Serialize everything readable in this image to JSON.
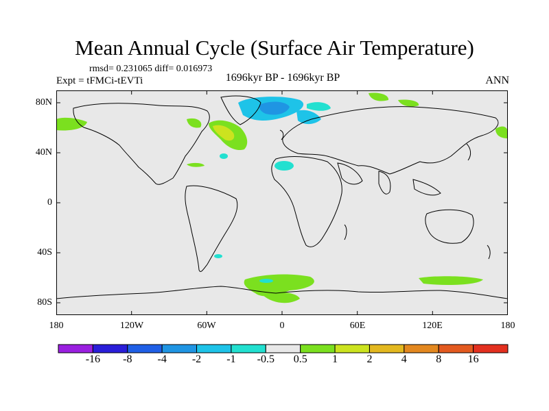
{
  "title": "Mean Annual Cycle (Surface Air Temperature)",
  "stats": "rmsd= 0.231065 diff= 0.016973",
  "experiment": "Expt = tFMCi-tEVTi",
  "period": "1696kyr BP - 1696kyr BP",
  "season": "ANN",
  "y_ticks": [
    "80N",
    "40N",
    "0",
    "40S",
    "80S"
  ],
  "x_ticks": [
    "180",
    "120W",
    "60W",
    "0",
    "60E",
    "120E",
    "180"
  ],
  "colorbar": {
    "labels": [
      "-16",
      "-8",
      "-4",
      "-2",
      "-1",
      "-0.5",
      "0.5",
      "1",
      "2",
      "4",
      "8",
      "16"
    ],
    "colors": [
      "#9a1fe0",
      "#2a1ed9",
      "#1f5fe6",
      "#1f95e3",
      "#1ec3e8",
      "#22e0d0",
      "#e8e8e8",
      "#7be01f",
      "#cce31f",
      "#e3b81f",
      "#e3881f",
      "#e35a1f",
      "#e3301f"
    ]
  },
  "colors": {
    "background": "#e8e8e8",
    "coast": "#000000"
  }
}
